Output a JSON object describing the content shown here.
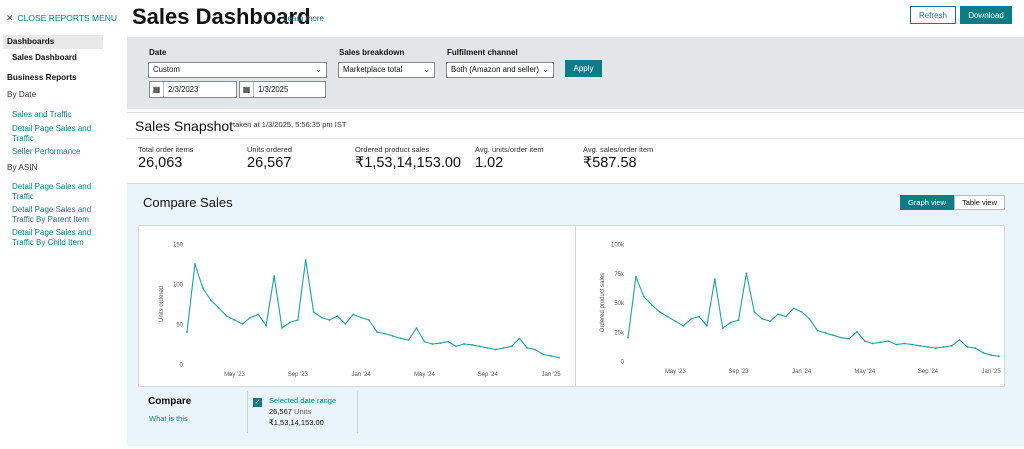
{
  "sidebar": {
    "close_label": "CLOSE REPORTS MENU",
    "dashboards_heading": "Dashboards",
    "sales_dashboard": "Sales Dashboard",
    "business_reports_heading": "Business Reports",
    "by_date_label": "By Date",
    "by_date_items": [
      "Sales and Traffic",
      "Detail Page Sales and Traffic",
      "Seller Performance"
    ],
    "by_asin_label": "By ASIN",
    "by_asin_items": [
      "Detail Page Sales and Traffic",
      "Detail Page Sales and Traffic By Parent Item",
      "Detail Page Sales and Traffic By Child Item"
    ]
  },
  "header": {
    "title": "Sales Dashboard",
    "learn_more": "Learn more",
    "refresh": "Refresh",
    "download": "Download"
  },
  "filters": {
    "date_label": "Date",
    "date_value": "Custom",
    "start_date": "2/3/2023",
    "end_date": "1/3/2025",
    "breakdown_label": "Sales breakdown",
    "breakdown_value": "Marketplace total",
    "fulfilment_label": "Fulfilment channel",
    "fulfilment_value": "Both (Amazon and seller)",
    "apply": "Apply"
  },
  "snapshot": {
    "title": "Sales Snapshot",
    "taken": "taken at 1/3/2025, 5:56:35 pm IST",
    "metrics": [
      {
        "label": "Total order items",
        "value": "26,063"
      },
      {
        "label": "Units ordered",
        "value": "26,567"
      },
      {
        "label": "Ordered product sales",
        "value": "₹1,53,14,153.00"
      },
      {
        "label": "Avg. units/order item",
        "value": "1.02"
      },
      {
        "label": "Avg. sales/order item",
        "value": "₹587.58"
      }
    ]
  },
  "compare": {
    "title": "Compare Sales",
    "graph_view": "Graph view",
    "table_view": "Table view",
    "compare_label": "Compare",
    "what_is_this": "What is this",
    "legend": {
      "name": "Selected date range",
      "units_value": "26,567",
      "units_label": "Units",
      "sales_value": "₹1,53,14,153.00"
    }
  },
  "colors": {
    "accent": "#0e7c86",
    "series": "#1aa3a8",
    "filter_bg": "#e3e6e8",
    "compare_bg": "#e9f5fa"
  },
  "chart_data": [
    {
      "type": "line",
      "title": "",
      "xlabel": "",
      "ylabel": "Units ordered",
      "ylim": [
        0,
        150
      ],
      "yticks": [
        "0",
        "50",
        "100",
        "150"
      ],
      "xticks": [
        "May '23",
        "Sep '23",
        "Jan '24",
        "May '24",
        "Sep '24",
        "Jan '25"
      ],
      "series": [
        {
          "name": "Selected date range",
          "x_months": [
            0,
            0.5,
            1,
            1.5,
            2,
            2.5,
            3,
            3.5,
            4,
            4.5,
            5,
            5.5,
            6,
            6.5,
            7,
            7.5,
            8,
            8.5,
            9,
            9.5,
            10,
            10.5,
            11,
            11.5,
            12,
            12.5,
            13,
            13.5,
            14,
            14.5,
            15,
            15.5,
            16,
            16.5,
            17,
            17.5,
            18,
            18.5,
            19,
            19.5,
            20,
            20.5,
            21,
            21.5,
            22,
            22.5,
            23,
            23.5
          ],
          "values": [
            40,
            125,
            95,
            80,
            70,
            60,
            55,
            50,
            58,
            62,
            48,
            110,
            45,
            52,
            55,
            130,
            65,
            58,
            55,
            60,
            50,
            62,
            58,
            55,
            40,
            38,
            35,
            32,
            30,
            45,
            28,
            25,
            26,
            28,
            22,
            25,
            24,
            22,
            20,
            18,
            20,
            22,
            32,
            20,
            18,
            12,
            10,
            8
          ]
        }
      ]
    },
    {
      "type": "line",
      "title": "",
      "xlabel": "",
      "ylabel": "Ordered product sales",
      "ylim": [
        0,
        100000
      ],
      "yticks": [
        "0",
        "25k",
        "50k",
        "75k",
        "100k"
      ],
      "xticks": [
        "May '23",
        "Sep '23",
        "Jan '24",
        "May '24",
        "Sep '24",
        "Jan '25"
      ],
      "series": [
        {
          "name": "Selected date range",
          "x_months": [
            0,
            0.5,
            1,
            1.5,
            2,
            2.5,
            3,
            3.5,
            4,
            4.5,
            5,
            5.5,
            6,
            6.5,
            7,
            7.5,
            8,
            8.5,
            9,
            9.5,
            10,
            10.5,
            11,
            11.5,
            12,
            12.5,
            13,
            13.5,
            14,
            14.5,
            15,
            15.5,
            16,
            16.5,
            17,
            17.5,
            18,
            18.5,
            19,
            19.5,
            20,
            20.5,
            21,
            21.5,
            22,
            22.5,
            23,
            23.5
          ],
          "values": [
            20000,
            72000,
            55000,
            48000,
            42000,
            38000,
            34000,
            30000,
            36000,
            38000,
            30000,
            70000,
            28000,
            33000,
            35000,
            75000,
            42000,
            36000,
            34000,
            40000,
            38000,
            45000,
            42000,
            36000,
            26000,
            24000,
            22000,
            20000,
            19000,
            25000,
            17000,
            15000,
            16000,
            17000,
            14000,
            15000,
            14000,
            13000,
            12000,
            11000,
            12000,
            13000,
            18000,
            12000,
            11000,
            7000,
            5000,
            4000
          ]
        }
      ]
    }
  ]
}
